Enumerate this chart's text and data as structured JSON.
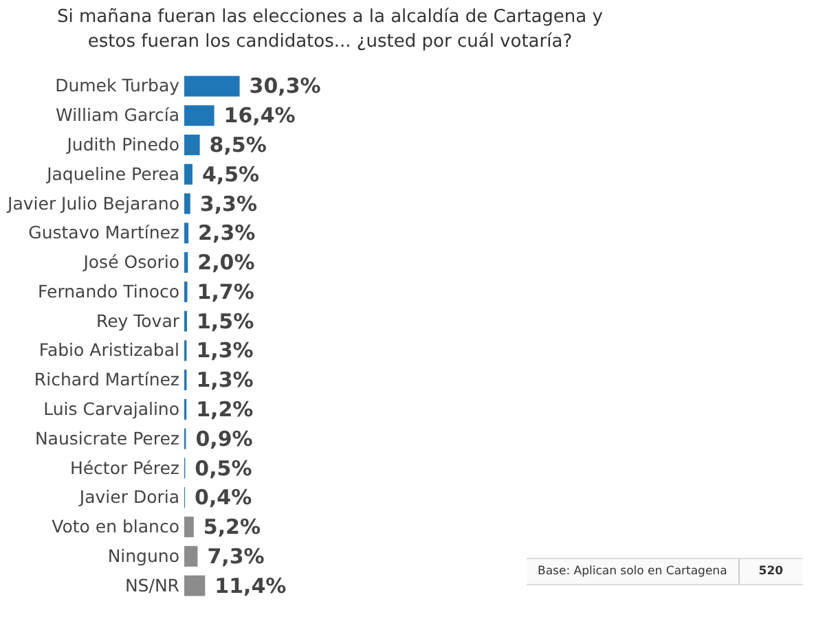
{
  "chart_data": {
    "type": "bar",
    "orientation": "horizontal",
    "title": "Si mañana fueran las elecciones a la alcaldía de Cartagena y estos fueran los candidatos... ¿usted por cuál votaría?",
    "categories": [
      "Dumek Turbay",
      "William García",
      "Judith Pinedo",
      "Jaqueline Perea",
      "Javier Julio Bejarano",
      "Gustavo Martínez",
      "José Osorio",
      "Fernando Tinoco",
      "Rey Tovar",
      "Fabio Aristizabal",
      "Richard Martínez",
      "Luis Carvajalino",
      "Nausicrate Perez",
      "Héctor Pérez",
      "Javier Doria",
      "Voto en blanco",
      "Ninguno",
      "NS/NR"
    ],
    "values": [
      30.3,
      16.4,
      8.5,
      4.5,
      3.3,
      2.3,
      2.0,
      1.7,
      1.5,
      1.3,
      1.3,
      1.2,
      0.9,
      0.5,
      0.4,
      5.2,
      7.3,
      11.4
    ],
    "value_labels": [
      "30,3%",
      "16,4%",
      "8,5%",
      "4,5%",
      "3,3%",
      "2,3%",
      "2,0%",
      "1,7%",
      "1,5%",
      "1,3%",
      "1,3%",
      "1,2%",
      "0,9%",
      "0,5%",
      "0,4%",
      "5,2%",
      "7,3%",
      "11,4%"
    ],
    "colors": [
      "#1f77b8",
      "#1f77b8",
      "#1f77b8",
      "#1f77b8",
      "#1f77b8",
      "#1f77b8",
      "#1f77b8",
      "#1f77b8",
      "#1f77b8",
      "#1f77b8",
      "#1f77b8",
      "#1f77b8",
      "#1f77b8",
      "#1f77b8",
      "#1f77b8",
      "#8c8c8c",
      "#8c8c8c",
      "#8c8c8c"
    ],
    "annotations": [
      "Base: Aplican solo en Cartagena",
      "520"
    ]
  }
}
